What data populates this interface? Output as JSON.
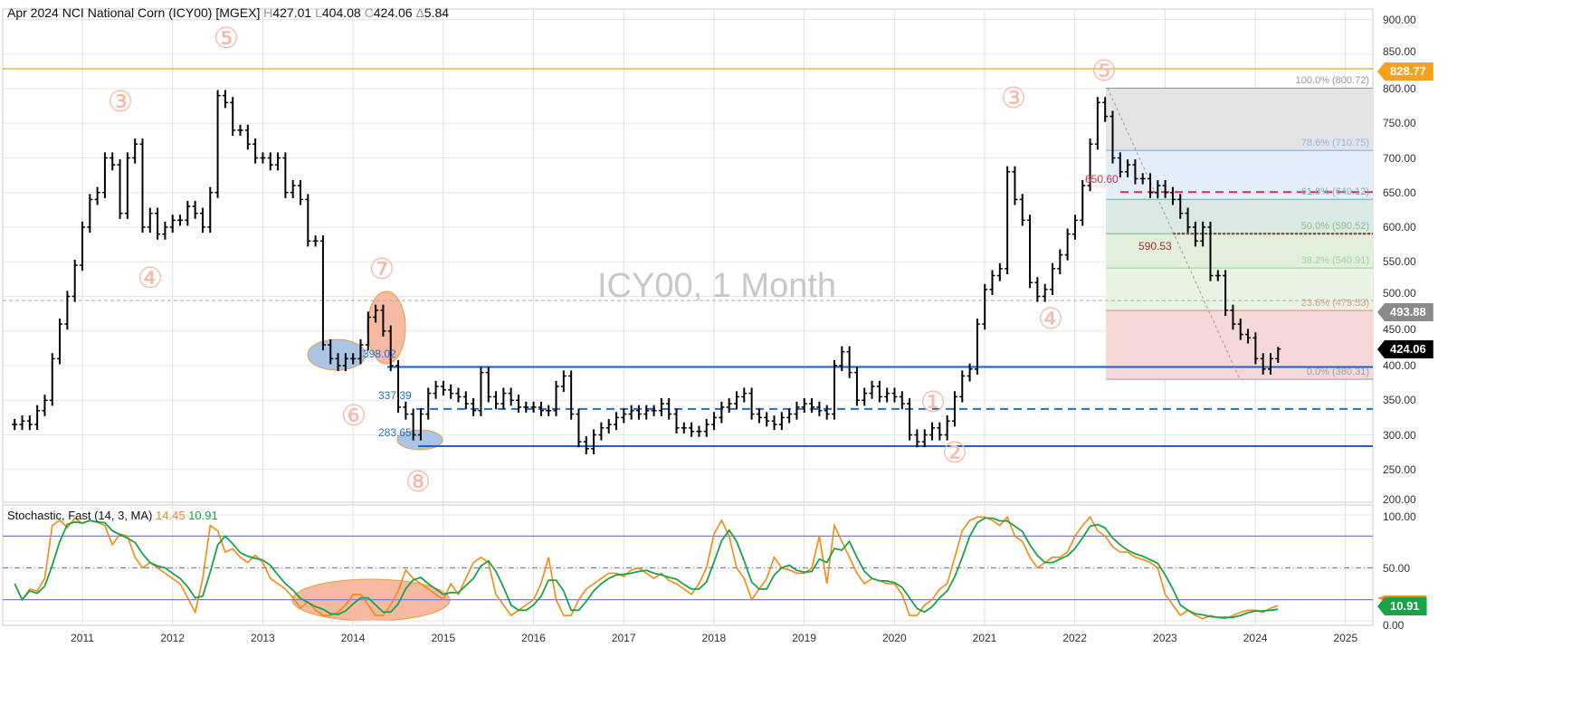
{
  "header": {
    "title": "Apr 2024 NCI National Corn (ICY00) [MGEX]",
    "h_label": "H",
    "high": "427.01",
    "l_label": "L",
    "low": "404.08",
    "c_label": "C",
    "close": "424.06",
    "d_label": "Δ",
    "change": "5.84"
  },
  "watermark": "ICY00, 1 Month",
  "stoch_header": {
    "title": "Stochastic, Fast (14, 3, MA)",
    "k": "14.45",
    "d": "10.91"
  },
  "price_tags": {
    "orange": "828.77",
    "gray": "493.88",
    "last": "424.06",
    "stoch_d": "10.91"
  },
  "colors": {
    "orange": "#f7a21b",
    "gray": "#8a8a8a",
    "last": "#000000",
    "green": "#1aa34a",
    "k_line": "#f7890c",
    "d_line": "#1aa34a",
    "blue": "#1f5fc9",
    "red": "#e0284f",
    "wave": "#f7b9a5"
  },
  "levels": {
    "l398": "398.02",
    "l337": "337.39",
    "l283": "283.65",
    "l650": "650.60",
    "l590": "590.53"
  },
  "fib": [
    {
      "label": "100.0% (800.72)",
      "value": 800.72,
      "color": "#9a9a9a"
    },
    {
      "label": "78.6% (710.75)",
      "value": 710.75,
      "color": "#8fb4e0"
    },
    {
      "label": "61.8% (640.12)",
      "value": 640.12,
      "color": "#7fb0b0"
    },
    {
      "label": "50.0% (590.52)",
      "value": 590.52,
      "color": "#8cc08c"
    },
    {
      "label": "38.2% (540.91)",
      "value": 540.91,
      "color": "#a9d2a0"
    },
    {
      "label": "23.6% (479.53)",
      "value": 479.53,
      "color": "#e59a8a"
    },
    {
      "label": "0.0% (380.31)",
      "value": 380.31,
      "color": "#a0a0a0"
    }
  ],
  "waves": [
    "⑤",
    "③",
    "④",
    "⑦",
    "⑥",
    "⑧",
    "⑤",
    "③",
    "④",
    "①",
    "②"
  ],
  "price_axis": [
    "900.00",
    "850.00",
    "800.00",
    "750.00",
    "700.00",
    "650.00",
    "600.00",
    "550.00",
    "500.00",
    "450.00",
    "400.00",
    "350.00",
    "300.00",
    "250.00",
    "200.00"
  ],
  "stoch_axis": [
    "100.00",
    "50.00",
    "0.00"
  ],
  "years": [
    "2011",
    "2012",
    "2013",
    "2014",
    "2015",
    "2016",
    "2017",
    "2018",
    "2019",
    "2020",
    "2021",
    "2022",
    "2023",
    "2024",
    "2025"
  ],
  "chart_data": {
    "type": "ohlc-bar",
    "period": "monthly",
    "start": "2010-04",
    "end": "2024-04",
    "ylim": [
      200,
      900
    ],
    "scale": "linear",
    "closes": [
      315,
      320,
      315,
      335,
      350,
      410,
      460,
      500,
      545,
      600,
      640,
      650,
      700,
      690,
      620,
      700,
      720,
      600,
      620,
      590,
      600,
      610,
      610,
      630,
      620,
      600,
      650,
      790,
      780,
      740,
      740,
      720,
      700,
      700,
      690,
      700,
      650,
      660,
      640,
      580,
      580,
      430,
      410,
      400,
      410,
      410,
      430,
      470,
      480,
      450,
      400,
      340,
      330,
      300,
      330,
      360,
      370,
      365,
      360,
      355,
      345,
      335,
      390,
      355,
      345,
      360,
      350,
      340,
      340,
      340,
      335,
      335,
      370,
      385,
      330,
      290,
      280,
      300,
      310,
      315,
      325,
      330,
      335,
      330,
      335,
      335,
      345,
      330,
      310,
      310,
      305,
      305,
      315,
      325,
      340,
      345,
      355,
      360,
      330,
      325,
      320,
      315,
      325,
      330,
      340,
      345,
      340,
      335,
      330,
      400,
      420,
      390,
      350,
      360,
      370,
      355,
      360,
      355,
      345,
      300,
      290,
      300,
      310,
      300,
      320,
      355,
      385,
      395,
      460,
      510,
      530,
      540,
      680,
      640,
      610,
      520,
      500,
      510,
      540,
      560,
      590,
      610,
      660,
      720,
      780,
      760,
      700,
      680,
      690,
      670,
      670,
      650,
      660,
      650,
      640,
      620,
      600,
      580,
      600,
      530,
      530,
      480,
      460,
      445,
      440,
      410,
      395,
      410,
      424.06
    ],
    "last_bar": {
      "high": 427.01,
      "low": 404.08,
      "close": 424.06
    },
    "stochastic": {
      "params": "14, 3, MA",
      "ylim": [
        0,
        100
      ],
      "levels": [
        80,
        50,
        20
      ],
      "k": [
        35,
        20,
        30,
        28,
        40,
        90,
        95,
        88,
        97,
        92,
        95,
        93,
        90,
        72,
        82,
        80,
        60,
        50,
        55,
        50,
        45,
        40,
        35,
        22,
        8,
        40,
        90,
        85,
        65,
        68,
        60,
        55,
        62,
        55,
        40,
        35,
        30,
        22,
        12,
        18,
        10,
        5,
        5,
        8,
        15,
        25,
        25,
        15,
        5,
        5,
        15,
        28,
        48,
        40,
        35,
        30,
        25,
        20,
        35,
        25,
        40,
        55,
        60,
        55,
        25,
        15,
        5,
        10,
        15,
        20,
        35,
        60,
        20,
        5,
        5,
        20,
        30,
        35,
        40,
        45,
        45,
        42,
        48,
        50,
        45,
        40,
        45,
        38,
        35,
        30,
        25,
        35,
        50,
        82,
        95,
        80,
        50,
        40,
        20,
        30,
        40,
        60,
        50,
        48,
        45,
        45,
        50,
        80,
        35,
        90,
        75,
        60,
        45,
        35,
        40,
        38,
        35,
        35,
        25,
        5,
        5,
        15,
        20,
        30,
        35,
        60,
        85,
        95,
        98,
        98,
        95,
        90,
        98,
        80,
        75,
        60,
        50,
        55,
        60,
        60,
        65,
        80,
        90,
        98,
        85,
        80,
        70,
        65,
        65,
        60,
        58,
        55,
        50,
        25,
        15,
        5,
        10,
        5,
        2,
        5,
        3,
        2,
        5,
        8,
        10,
        10,
        8,
        12,
        14.45
      ],
      "last_k": 14.45,
      "last_d": 10.91
    }
  }
}
